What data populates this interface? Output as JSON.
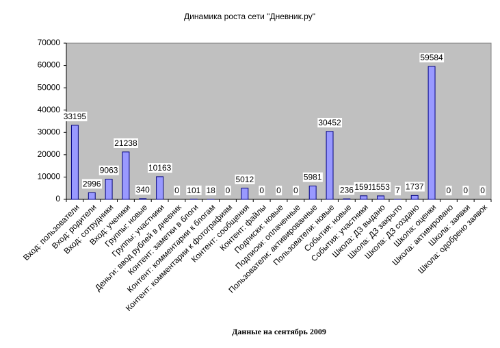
{
  "chart_data": {
    "type": "bar",
    "title": "Динамика роста сети \"Дневник.ру\"",
    "x_label": "Данные на сентябрь 2009",
    "categories": [
      "Вход: пользователи",
      "Вход: родители",
      "Вход: сотрудники",
      "Вход: ученики",
      "Группы: новые",
      "Группы: участники",
      "Деньги: ввод рублей в дневник",
      "Контент: заметки в блоги",
      "Контент: комментарии к блогам",
      "Контент: комментарии к фотографиям",
      "Контент: сообщения",
      "Контент: файлы",
      "Подписки: новые",
      "Подписки: оплаченные",
      "Пользователи: активированные",
      "Пользователи: новые",
      "События: новые",
      "События: участники",
      "Школа: ДЗ выдано",
      "Школа: ДЗ закрыто",
      "Школа: ДЗ создано",
      "Школа: оценки",
      "Школа: активировано",
      "Школа: заявки",
      "Школа: одобрено заявок"
    ],
    "values": [
      33195,
      2996,
      9063,
      21238,
      340,
      10163,
      0,
      101,
      18,
      0,
      5012,
      0,
      0,
      0,
      5981,
      30452,
      236,
      1591,
      1553,
      7,
      1737,
      59584,
      0,
      0,
      0
    ],
    "color": "#9999ff",
    "ylim": [
      0,
      70000
    ],
    "yticks": [
      0,
      10000,
      20000,
      30000,
      40000,
      50000,
      60000,
      70000
    ],
    "grid": false
  }
}
